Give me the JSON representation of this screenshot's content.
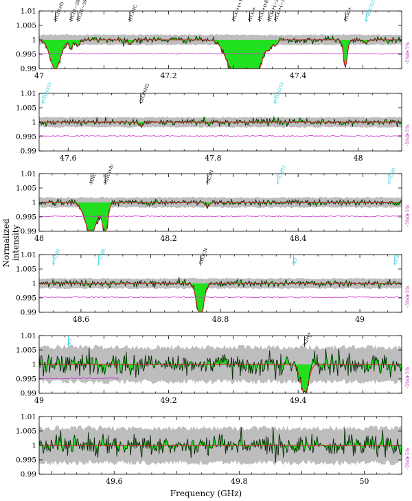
{
  "colors": {
    "noise_band": "#bdbdbd",
    "spectrum_fill": "#20e020",
    "spectrum_line": "#0a2a0a",
    "model": "#d62020",
    "residual": "#cc33cc",
    "label_detected": "#000000",
    "label_tentative": "#22c8d8"
  },
  "chart_data": {
    "type": "line",
    "xlabel": "Frequency (GHz)",
    "ylabel": "Normalized intensity",
    "y_ticks": [
      "1.01",
      "1.005",
      "1",
      "0.995",
      "0.99"
    ],
    "ylim": [
      0.99,
      1.01
    ],
    "residual_axis_ticks": [
      "+5%",
      "0",
      "-5%"
    ],
    "panels": [
      {
        "xlim": [
          47.0,
          47.56
        ],
        "x_ticks": [
          "47",
          "47.2",
          "47.4"
        ],
        "noise_band": 0.0017,
        "lines": [
          {
            "label": "HCN(ν8)",
            "freq": 47.025,
            "depth": 0.0105,
            "width": 0.008,
            "color": "black"
          },
          {
            "label": "HCN(−284)",
            "freq": 47.049,
            "depth": 0.003,
            "width": 0.003,
            "color": "black"
          },
          {
            "label": "HCN(−300)",
            "freq": 47.06,
            "depth": 0.002,
            "width": 0.003,
            "color": "black"
          },
          {
            "label": "H13NC",
            "freq": 47.14,
            "depth": 0.0015,
            "width": 0.003,
            "color": "black"
          },
          {
            "label": "HCO+(+170)",
            "freq": 47.3,
            "depth": 0.0105,
            "width": 0.012,
            "color": "black"
          },
          {
            "label": "HCO+",
            "freq": 47.325,
            "depth": 0.0105,
            "width": 0.012,
            "color": "black"
          },
          {
            "label": "HCO+(ν8)",
            "freq": 47.34,
            "depth": 0.006,
            "width": 0.006,
            "color": "black"
          },
          {
            "label": "HCO+(−284)",
            "freq": 47.355,
            "depth": 0.003,
            "width": 0.004,
            "color": "black"
          },
          {
            "label": "HCO+(−300)",
            "freq": 47.365,
            "depth": 0.002,
            "width": 0.003,
            "color": "black"
          },
          {
            "label": "HOC+",
            "freq": 47.473,
            "depth": 0.0095,
            "width": 0.003,
            "color": "black"
          },
          {
            "label": "l−H2CO3",
            "freq": 47.505,
            "depth": 0.001,
            "width": 0.003,
            "color": "cyan"
          }
        ]
      },
      {
        "xlim": [
          47.56,
          48.06
        ],
        "x_ticks": [
          "47.6",
          "47.8",
          "48"
        ],
        "noise_band": 0.0017,
        "lines": [
          {
            "label": "l−H2CO3",
            "freq": 47.565,
            "depth": 0.0,
            "width": 0.003,
            "color": "cyan"
          },
          {
            "label": "CH3NH2",
            "freq": 47.7,
            "depth": 0.0015,
            "width": 0.003,
            "color": "black"
          },
          {
            "label": "l−H2CO3",
            "freq": 47.885,
            "depth": 0.0,
            "width": 0.003,
            "color": "cyan"
          }
        ]
      },
      {
        "xlim": [
          48.0,
          48.56
        ],
        "x_ticks": [
          "48",
          "48.2",
          "48.4"
        ],
        "noise_band": 0.0017,
        "lines": [
          {
            "label": "HNC",
            "freq": 48.08,
            "depth": 0.011,
            "width": 0.009,
            "color": "black"
          },
          {
            "label": "HNC(ν8)",
            "freq": 48.102,
            "depth": 0.011,
            "width": 0.004,
            "color": "black"
          },
          {
            "label": "HC3N",
            "freq": 48.26,
            "depth": 0.0015,
            "width": 0.003,
            "color": "black"
          },
          {
            "label": "c−C3H2",
            "freq": 48.368,
            "depth": 0.0,
            "width": 0.003,
            "color": "cyan"
          },
          {
            "label": "c−C3H",
            "freq": 48.54,
            "depth": 0.0,
            "width": 0.003,
            "color": "cyan"
          }
        ]
      },
      {
        "xlim": [
          48.54,
          49.06
        ],
        "x_ticks": [
          "48.6",
          "48.8",
          "49"
        ],
        "noise_band": 0.0017,
        "lines": [
          {
            "label": "c−C3H",
            "freq": 48.56,
            "depth": 0.0,
            "width": 0.003,
            "color": "cyan"
          },
          {
            "label": "c−C3H",
            "freq": 48.625,
            "depth": 0.0,
            "width": 0.003,
            "color": "cyan"
          },
          {
            "label": "CH3CN",
            "freq": 48.771,
            "depth": 0.012,
            "width": 0.005,
            "color": "black"
          },
          {
            "label": "SO",
            "freq": 48.905,
            "depth": 0.0,
            "width": 0.003,
            "color": "cyan"
          },
          {
            "label": "CCS",
            "freq": 49.05,
            "depth": 0.0,
            "width": 0.003,
            "color": "cyan"
          }
        ]
      },
      {
        "xlim": [
          49.0,
          49.56
        ],
        "x_ticks": [
          "49",
          "49.2",
          "49.4"
        ],
        "noise_band": 0.006,
        "lines": [
          {
            "label": "SO",
            "freq": 49.045,
            "depth": 0.0,
            "width": 0.003,
            "color": "cyan"
          },
          {
            "label": "N2H+",
            "freq": 49.41,
            "depth": 0.0105,
            "width": 0.006,
            "color": "black"
          }
        ]
      },
      {
        "xlim": [
          49.48,
          50.06
        ],
        "x_ticks": [
          "49.6",
          "49.8",
          "50"
        ],
        "noise_band": 0.006,
        "lines": []
      }
    ]
  }
}
